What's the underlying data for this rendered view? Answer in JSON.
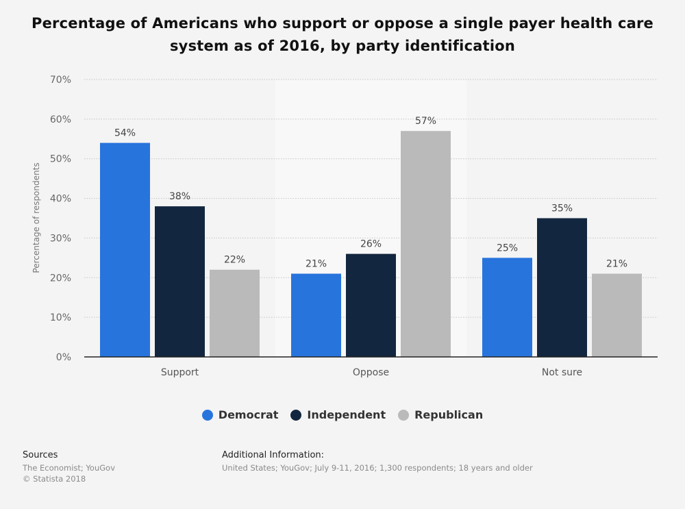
{
  "chart_data": {
    "type": "bar",
    "title": "Percentage of Americans who support or oppose a single payer health care system as of 2016, by party identification",
    "ylabel": "Percentage of respondents",
    "xlabel": "",
    "ylim": [
      0,
      70
    ],
    "yticks": [
      "0%",
      "10%",
      "20%",
      "30%",
      "40%",
      "50%",
      "60%",
      "70%"
    ],
    "categories": [
      "Support",
      "Oppose",
      "Not sure"
    ],
    "series": [
      {
        "name": "Democrat",
        "color": "#2874dd",
        "values": [
          54,
          21,
          25
        ],
        "labels": [
          "54%",
          "21%",
          "25%"
        ]
      },
      {
        "name": "Independent",
        "color": "#12263f",
        "values": [
          38,
          26,
          35
        ],
        "labels": [
          "38%",
          "26%",
          "35%"
        ]
      },
      {
        "name": "Republican",
        "color": "#bababa",
        "values": [
          22,
          57,
          21
        ],
        "labels": [
          "22%",
          "57%",
          "21%"
        ]
      }
    ],
    "grid": true,
    "legend_position": "bottom"
  },
  "footer": {
    "sources_heading": "Sources",
    "sources_line1": "The Economist; YouGov",
    "sources_line2": "© Statista 2018",
    "additional_heading": "Additional Information:",
    "additional_text": "United States; YouGov; July 9-11, 2016; 1,300 respondents; 18 years and older"
  }
}
